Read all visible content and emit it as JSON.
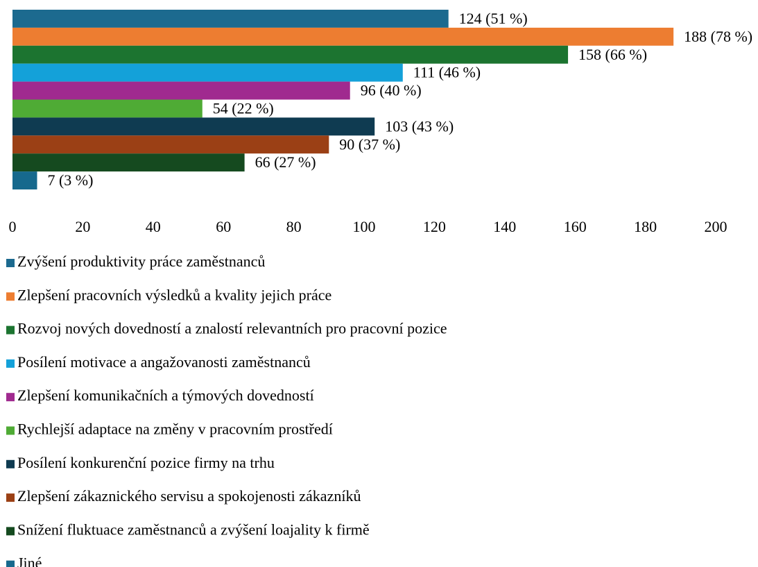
{
  "chart_data": {
    "type": "barh",
    "categories": [
      "Zvýšení produktivity práce zaměstnanců",
      "Zlepšení pracovních výsledků a kvality jejich práce",
      "Rozvoj nových dovedností a znalostí relevantních pro pracovní pozice",
      "Posílení motivace a angažovanosti zaměstnanců",
      "Zlepšení komunikačních a týmových dovedností",
      "Rychlejší adaptace na změny v pracovním prostředí",
      "Posílení konkurenční pozice firmy na trhu",
      "Zlepšení zákaznického servisu a spokojenosti zákazníků",
      "Snížení fluktuace zaměstnanců a zvýšení loajality k firmě",
      "Jiné"
    ],
    "values": [
      124,
      188,
      158,
      111,
      96,
      54,
      103,
      90,
      66,
      7
    ],
    "value_labels": [
      "124 (51 %)",
      "188 (78 %)",
      "158 (66 %)",
      "111 (46 %)",
      "96 (40 %)",
      "54 (22 %)",
      "103 (43 %)",
      "90 (37 %)",
      "66 (27 %)",
      "7 (3 %)"
    ],
    "colors": [
      "#1c6a8f",
      "#ed7d31",
      "#1c7430",
      "#14a1d9",
      "#a02a8f",
      "#4fab35",
      "#0f3b51",
      "#9b4015",
      "#154a1f",
      "#16698d"
    ],
    "xlim": [
      0,
      200
    ],
    "xticks": [
      0,
      20,
      40,
      60,
      80,
      100,
      120,
      140,
      160,
      180,
      200
    ],
    "grid": false,
    "legend": "bottom"
  }
}
